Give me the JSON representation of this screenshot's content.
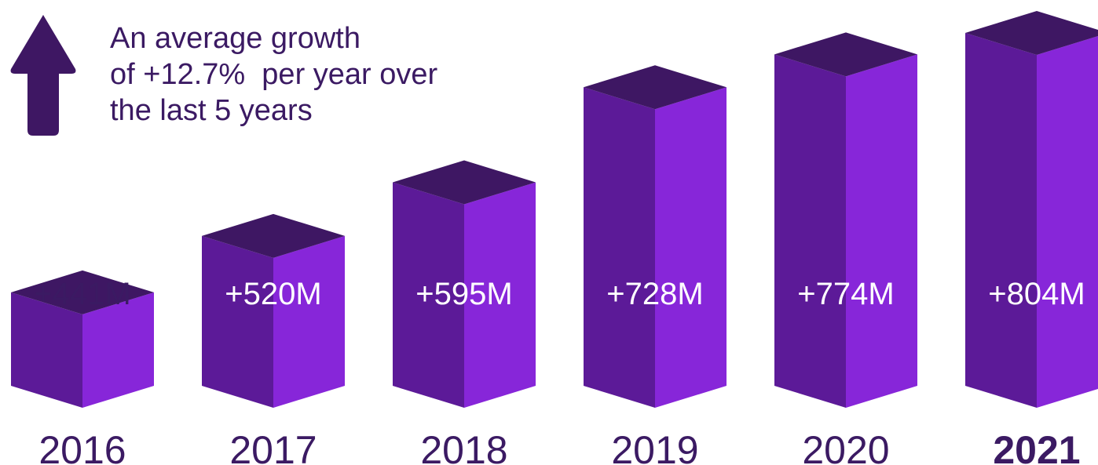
{
  "headline": {
    "lines": [
      "An average growth",
      "of +12.7%  per year over",
      "the last 5 years"
    ]
  },
  "icon": "up-arrow-icon",
  "colors": {
    "text": "#3b1a63",
    "bar_top": "#3e1763",
    "bar_left": "#5c1a98",
    "bar_right": "#8726d9",
    "arrow": "#3e1763"
  },
  "chart_data": {
    "type": "bar",
    "style": "3d-box",
    "categories": [
      "2016",
      "2017",
      "2018",
      "2019",
      "2020",
      "2021"
    ],
    "values": [
      441,
      520,
      595,
      728,
      774,
      804
    ],
    "value_unit": "M",
    "labels": [
      "+441M",
      "+520M",
      "+595M",
      "+728M",
      "+774M",
      "+804M"
    ],
    "highlight_category": "2021",
    "title": "",
    "xlabel": "",
    "ylabel": "",
    "grid": false,
    "legend": "none"
  }
}
